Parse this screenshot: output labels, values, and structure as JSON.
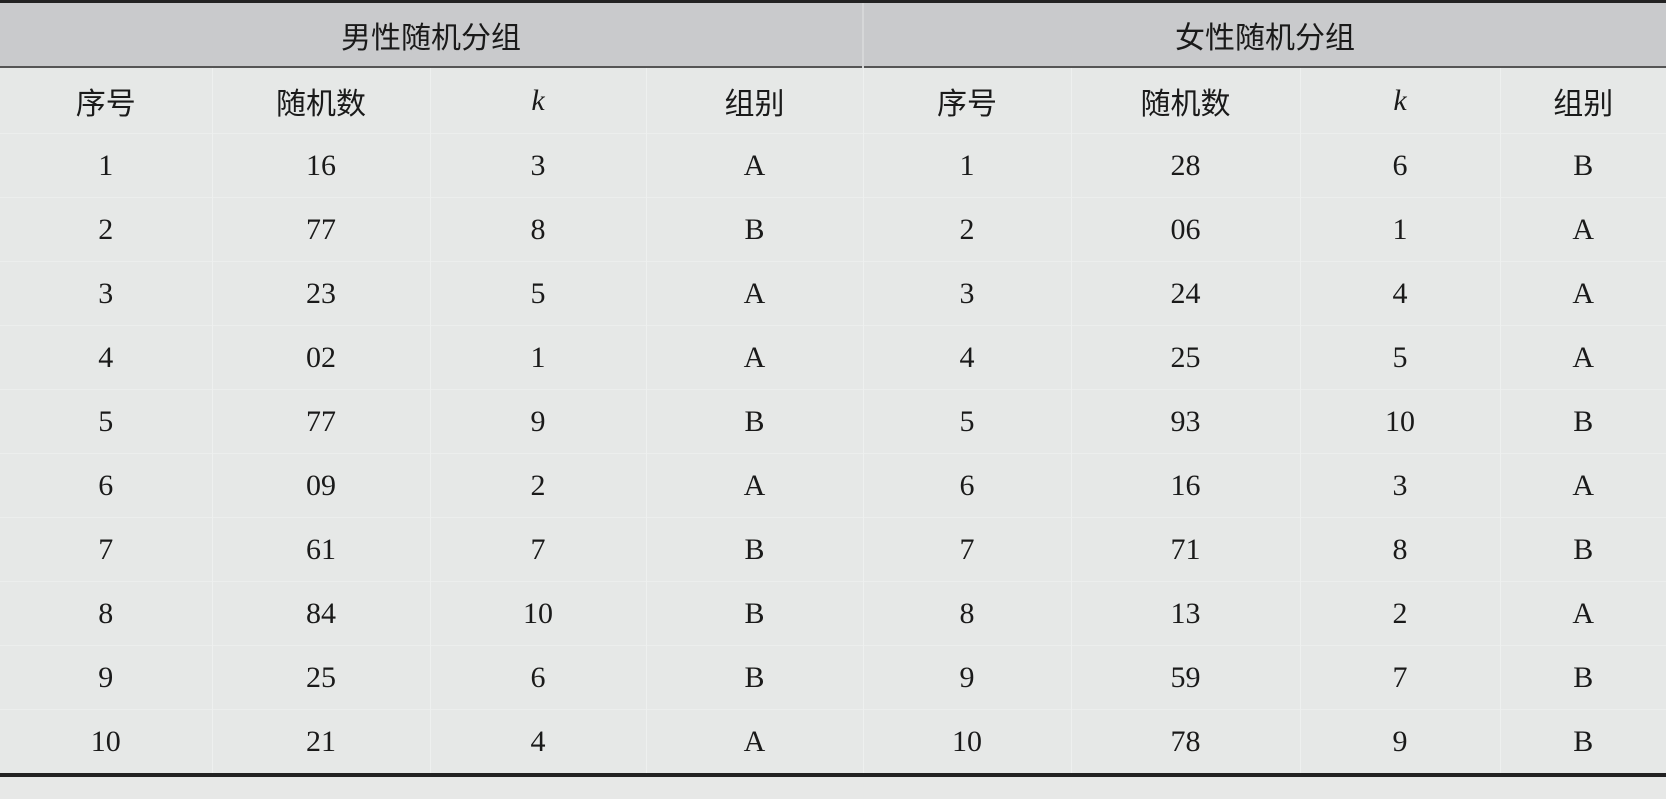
{
  "groups": {
    "male": "男性随机分组",
    "female": "女性随机分组"
  },
  "headers": [
    "序号",
    "随机数",
    "k",
    "组别",
    "序号",
    "随机数",
    "k",
    "组别"
  ],
  "rows": [
    [
      "1",
      "16",
      "3",
      "A",
      "1",
      "28",
      "6",
      "B"
    ],
    [
      "2",
      "77",
      "8",
      "B",
      "2",
      "06",
      "1",
      "A"
    ],
    [
      "3",
      "23",
      "5",
      "A",
      "3",
      "24",
      "4",
      "A"
    ],
    [
      "4",
      "02",
      "1",
      "A",
      "4",
      "25",
      "5",
      "A"
    ],
    [
      "5",
      "77",
      "9",
      "B",
      "5",
      "93",
      "10",
      "B"
    ],
    [
      "6",
      "09",
      "2",
      "A",
      "6",
      "16",
      "3",
      "A"
    ],
    [
      "7",
      "61",
      "7",
      "B",
      "7",
      "71",
      "8",
      "B"
    ],
    [
      "8",
      "84",
      "10",
      "B",
      "8",
      "13",
      "2",
      "A"
    ],
    [
      "9",
      "25",
      "6",
      "B",
      "9",
      "59",
      "7",
      "B"
    ],
    [
      "10",
      "21",
      "4",
      "A",
      "10",
      "78",
      "9",
      "B"
    ]
  ]
}
